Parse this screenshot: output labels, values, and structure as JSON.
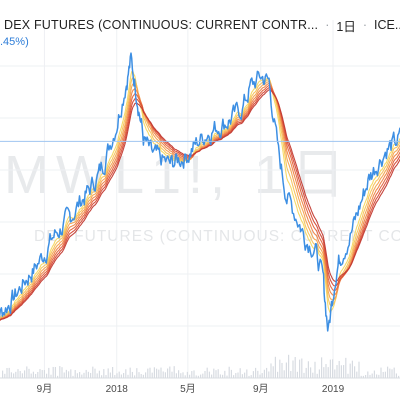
{
  "header": {
    "title": "DEX FUTURES (CONTINUOUS: CURRENT CONTR...",
    "interval": "1日",
    "exchange": "ICE...",
    "change": ".45%)"
  },
  "watermark": {
    "symbol": "MWL1!, 1日",
    "description": "DEX FUTURES (CONTINUOUS: CURRENT CONTRACT IN F"
  },
  "colors": {
    "price": "#3d8fe3",
    "ribbon": [
      "#f6d860",
      "#f7c25a",
      "#f4a34f",
      "#ee8446",
      "#e4643d",
      "#d64a36",
      "#c23a32"
    ],
    "reference_line": "#9fc5f0",
    "grid": "#eef0f3",
    "volume": "#d7dbe1"
  },
  "chart_data": {
    "type": "line",
    "title": "",
    "xlabel": "",
    "ylabel": "",
    "x_ticks": [
      "9月",
      "2018",
      "5月",
      "9月",
      "2019"
    ],
    "x": [
      "2017-06-01",
      "2017-06-15",
      "2017-07-01",
      "2017-07-15",
      "2017-08-01",
      "2017-08-15",
      "2017-09-01",
      "2017-09-15",
      "2017-10-01",
      "2017-10-15",
      "2017-11-01",
      "2017-11-15",
      "2017-12-01",
      "2017-12-15",
      "2018-01-01",
      "2018-01-15",
      "2018-01-25",
      "2018-02-05",
      "2018-02-15",
      "2018-03-01",
      "2018-03-15",
      "2018-04-01",
      "2018-04-15",
      "2018-05-01",
      "2018-05-15",
      "2018-06-01",
      "2018-06-15",
      "2018-07-01",
      "2018-07-15",
      "2018-08-01",
      "2018-08-15",
      "2018-09-01",
      "2018-09-15",
      "2018-10-01",
      "2018-10-15",
      "2018-11-01",
      "2018-11-15",
      "2018-12-01",
      "2018-12-15",
      "2018-12-24",
      "2019-01-05",
      "2019-01-15",
      "2019-02-01",
      "2019-02-15",
      "2019-03-01",
      "2019-03-15",
      "2019-04-01",
      "2019-04-15",
      "2019-05-01"
    ],
    "series": [
      {
        "values": [
          41,
          42,
          44,
          46,
          49,
          51,
          54,
          57,
          59,
          61,
          64,
          66,
          69,
          73,
          79,
          86,
          91,
          84,
          76,
          73,
          72,
          71,
          72,
          73,
          75,
          77,
          78,
          79,
          80,
          82,
          86,
          88,
          87,
          73,
          65,
          61,
          57,
          55,
          49,
          39,
          50,
          54,
          58,
          63,
          68,
          71,
          74,
          75,
          77
        ]
      }
    ],
    "ribbon_moving_averages": 7,
    "reference_line": 75.5,
    "ylim": [
      30,
      95
    ],
    "grid": true,
    "legend": "none"
  }
}
